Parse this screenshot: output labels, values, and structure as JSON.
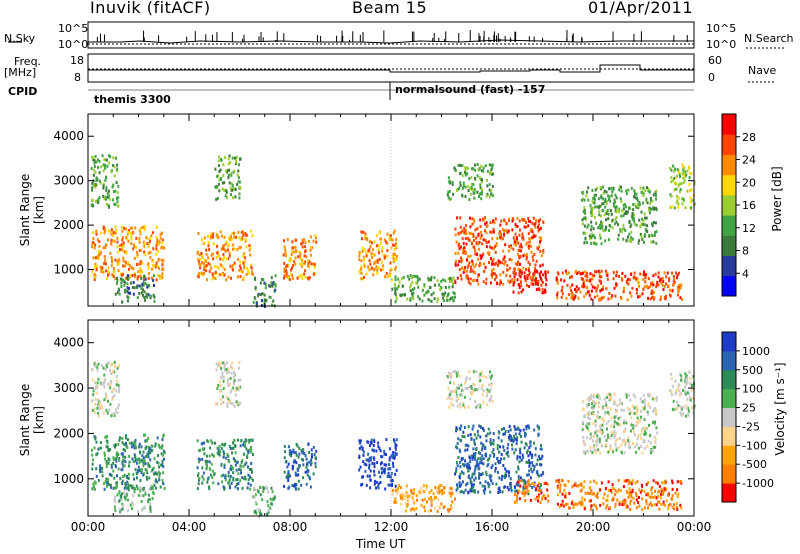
{
  "header": {
    "station": "Inuvik (fitACF)",
    "beam": "Beam 15",
    "date": "01/Apr/2011"
  },
  "top_panels": {
    "nsky_label": "N.Sky",
    "nsky_ticks": [
      "10^5",
      "10^0"
    ],
    "nsearch_label": "N.Search",
    "nsearch_ticks": [
      "10^5",
      "10^0"
    ],
    "freq_label": "Freq.",
    "freq_unit": "[MHz]",
    "freq_ticks": [
      "18",
      "8"
    ],
    "nave_label": "Nave",
    "nave_ticks": [
      "60",
      "0"
    ],
    "cpid_label": "CPID",
    "cpid_segments": [
      "themis 3300",
      "normalsound (fast) -157"
    ]
  },
  "colors": {
    "power": [
      "#0000ff",
      "#2a3a9c",
      "#3b7a3b",
      "#42a342",
      "#9acd32",
      "#ffd700",
      "#ff8c00",
      "#ff4500",
      "#ff0000"
    ],
    "velocity": [
      "#1e3cc8",
      "#2b65b0",
      "#2e8b57",
      "#4caf50",
      "#c8c8c8",
      "#ffd28c",
      "#ffa500",
      "#ff7f00",
      "#ff0000"
    ]
  },
  "chart_data": [
    {
      "type": "heatmap",
      "name": "power",
      "ylabel": "Slant Range [km]",
      "xlim": [
        0,
        24
      ],
      "ylim": [
        180,
        4500
      ],
      "yticks": [
        1000,
        2000,
        3000,
        4000
      ],
      "colorbar_label": "Power [dB]",
      "colorbar_ticks": [
        "28",
        "24",
        "20",
        "16",
        "12",
        "8",
        "4"
      ],
      "regions": [
        {
          "t": [
            0.1,
            3.0
          ],
          "r": [
            800,
            2000
          ],
          "level": 6
        },
        {
          "t": [
            0.1,
            1.2
          ],
          "r": [
            2400,
            3600
          ],
          "level": 3
        },
        {
          "t": [
            1.0,
            2.6
          ],
          "r": [
            300,
            900
          ],
          "level": 2
        },
        {
          "t": [
            4.3,
            6.5
          ],
          "r": [
            800,
            1900
          ],
          "level": 6
        },
        {
          "t": [
            5.0,
            6.0
          ],
          "r": [
            2600,
            3600
          ],
          "level": 3
        },
        {
          "t": [
            6.5,
            7.4
          ],
          "r": [
            200,
            900
          ],
          "level": 2
        },
        {
          "t": [
            7.7,
            9.0
          ],
          "r": [
            800,
            1800
          ],
          "level": 6
        },
        {
          "t": [
            10.7,
            12.2
          ],
          "r": [
            800,
            1900
          ],
          "level": 6
        },
        {
          "t": [
            12.0,
            14.5
          ],
          "r": [
            300,
            900
          ],
          "level": 3
        },
        {
          "t": [
            14.5,
            18.0
          ],
          "r": [
            700,
            2200
          ],
          "level": 7
        },
        {
          "t": [
            14.2,
            16.0
          ],
          "r": [
            2600,
            3400
          ],
          "level": 3
        },
        {
          "t": [
            16.8,
            18.2
          ],
          "r": [
            500,
            1000
          ],
          "level": 8
        },
        {
          "t": [
            18.5,
            23.5
          ],
          "r": [
            350,
            1000
          ],
          "level": 7
        },
        {
          "t": [
            19.5,
            22.5
          ],
          "r": [
            1600,
            2900
          ],
          "level": 3
        },
        {
          "t": [
            23.0,
            24.0
          ],
          "r": [
            2400,
            3400
          ],
          "level": 4
        }
      ]
    },
    {
      "type": "heatmap",
      "name": "velocity",
      "ylabel": "Slant Range [km]",
      "xlabel": "Time UT",
      "xlim": [
        0,
        24
      ],
      "ylim": [
        180,
        4500
      ],
      "yticks": [
        1000,
        2000,
        3000,
        4000
      ],
      "xticks": [
        "00:00",
        "04:00",
        "08:00",
        "12:00",
        "16:00",
        "20:00",
        "00:00"
      ],
      "colorbar_label": "Velocity [m s⁻¹]",
      "colorbar_ticks": [
        "1000",
        "500",
        "100",
        "25",
        "-25",
        "-100",
        "-500",
        "-1000"
      ],
      "regions": [
        {
          "t": [
            0.1,
            3.0
          ],
          "r": [
            800,
            2000
          ],
          "level": 2
        },
        {
          "t": [
            0.1,
            1.2
          ],
          "r": [
            2400,
            3600
          ],
          "level": 4
        },
        {
          "t": [
            1.0,
            2.6
          ],
          "r": [
            300,
            900
          ],
          "level": 3
        },
        {
          "t": [
            4.3,
            6.5
          ],
          "r": [
            800,
            1900
          ],
          "level": 2
        },
        {
          "t": [
            5.0,
            6.0
          ],
          "r": [
            2600,
            3600
          ],
          "level": 4
        },
        {
          "t": [
            6.5,
            7.4
          ],
          "r": [
            200,
            900
          ],
          "level": 3
        },
        {
          "t": [
            7.7,
            9.0
          ],
          "r": [
            800,
            1800
          ],
          "level": 1
        },
        {
          "t": [
            10.7,
            12.2
          ],
          "r": [
            800,
            1900
          ],
          "level": 0
        },
        {
          "t": [
            12.0,
            14.5
          ],
          "r": [
            300,
            900
          ],
          "level": 6
        },
        {
          "t": [
            14.5,
            18.0
          ],
          "r": [
            700,
            2200
          ],
          "level": 1
        },
        {
          "t": [
            14.2,
            16.0
          ],
          "r": [
            2600,
            3400
          ],
          "level": 4
        },
        {
          "t": [
            16.8,
            18.2
          ],
          "r": [
            500,
            1000
          ],
          "level": 7
        },
        {
          "t": [
            18.5,
            23.5
          ],
          "r": [
            350,
            1000
          ],
          "level": 7
        },
        {
          "t": [
            19.5,
            22.5
          ],
          "r": [
            1600,
            2900
          ],
          "level": 4
        },
        {
          "t": [
            23.0,
            24.0
          ],
          "r": [
            2400,
            3400
          ],
          "level": 4
        }
      ]
    }
  ]
}
